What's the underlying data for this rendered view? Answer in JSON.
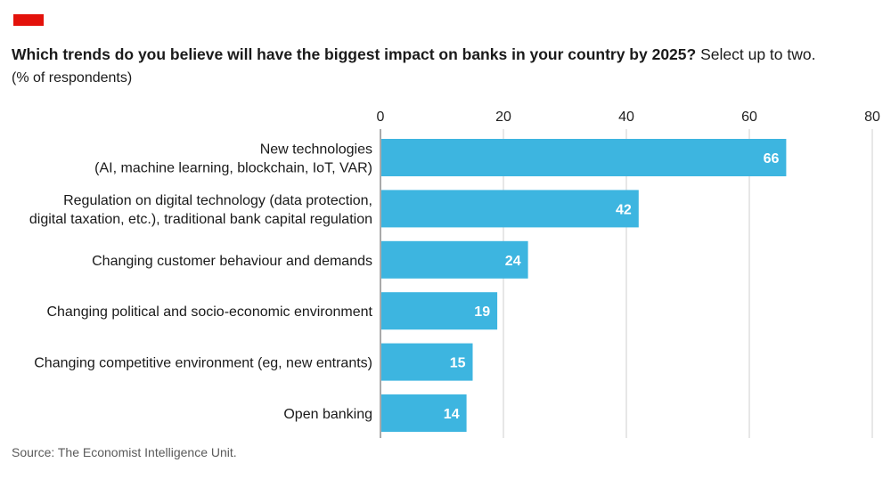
{
  "title_bold": "Which trends do you believe will have the biggest impact on banks in your country by 2025?",
  "title_rest": " Select up to two.",
  "subtitle": "(% of respondents)",
  "source": "Source: The Economist Intelligence Unit.",
  "colors": {
    "accent": "#e3120b",
    "bar": "#3db5e0",
    "grid": "#cfcfcf",
    "axis": "#555555"
  },
  "chart_data": {
    "type": "bar",
    "orientation": "horizontal",
    "categories": [
      [
        "New technologies",
        "(AI, machine learning, blockchain, IoT, VAR)"
      ],
      [
        "Regulation on digital technology (data protection,",
        "digital taxation, etc.), traditional bank capital regulation"
      ],
      [
        "Changing customer behaviour and demands"
      ],
      [
        "Changing political and socio-economic environment"
      ],
      [
        "Changing competitive environment (eg, new entrants)"
      ],
      [
        "Open banking"
      ]
    ],
    "values": [
      66,
      42,
      24,
      19,
      15,
      14
    ],
    "xlim": [
      0,
      80
    ],
    "ticks": [
      0,
      20,
      40,
      60,
      80
    ],
    "grid": true,
    "data_labels": true
  }
}
